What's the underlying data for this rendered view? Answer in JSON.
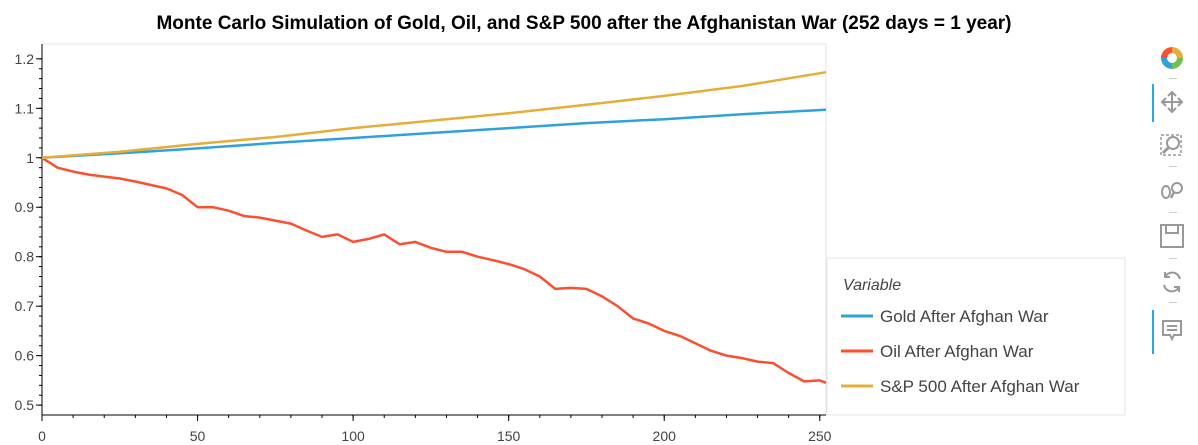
{
  "chart_data": {
    "type": "line",
    "title": "Monte Carlo Simulation of Gold, Oil, and S&P 500 after the Afghanistan War (252 days = 1 year)",
    "xlabel": "",
    "ylabel": "",
    "xlim": [
      0,
      252
    ],
    "ylim": [
      0.48,
      1.23
    ],
    "xticks": [
      0,
      50,
      100,
      150,
      200,
      250
    ],
    "yticks": [
      0.5,
      0.6,
      0.7,
      0.8,
      0.9,
      1,
      1.1,
      1.2
    ],
    "xtick_labels": [
      "0",
      "50",
      "100",
      "150",
      "200",
      "250"
    ],
    "ytick_labels": [
      "0.5",
      "0.6",
      "0.7",
      "0.8",
      "0.9",
      "1",
      "1.1",
      "1.2"
    ],
    "grid": false,
    "legend": {
      "title": "Variable",
      "position": "right"
    },
    "series": [
      {
        "name": "Gold After Afghan War",
        "color": "#30a2da",
        "x": [
          0,
          25,
          50,
          75,
          100,
          125,
          150,
          175,
          200,
          225,
          252
        ],
        "values": [
          1.0,
          1.009,
          1.019,
          1.03,
          1.04,
          1.05,
          1.06,
          1.07,
          1.078,
          1.088,
          1.097
        ]
      },
      {
        "name": "Oil After Afghan War",
        "color": "#fc4f30",
        "x": [
          0,
          5,
          10,
          15,
          20,
          25,
          30,
          35,
          40,
          45,
          50,
          55,
          60,
          65,
          70,
          75,
          80,
          85,
          90,
          95,
          100,
          105,
          110,
          115,
          120,
          125,
          130,
          135,
          140,
          145,
          150,
          155,
          160,
          165,
          170,
          175,
          180,
          185,
          190,
          195,
          200,
          205,
          210,
          215,
          220,
          225,
          230,
          235,
          240,
          245,
          250,
          252
        ],
        "values": [
          1.0,
          0.98,
          0.972,
          0.966,
          0.962,
          0.958,
          0.952,
          0.945,
          0.938,
          0.925,
          0.9,
          0.9,
          0.893,
          0.882,
          0.879,
          0.873,
          0.867,
          0.853,
          0.84,
          0.845,
          0.83,
          0.836,
          0.845,
          0.825,
          0.83,
          0.818,
          0.81,
          0.81,
          0.8,
          0.793,
          0.785,
          0.775,
          0.76,
          0.735,
          0.737,
          0.735,
          0.72,
          0.7,
          0.675,
          0.665,
          0.65,
          0.64,
          0.625,
          0.61,
          0.6,
          0.595,
          0.588,
          0.585,
          0.565,
          0.548,
          0.55,
          0.545
        ]
      },
      {
        "name": "S&P 500 After Afghan War",
        "color": "#e5ae38",
        "x": [
          0,
          25,
          50,
          75,
          100,
          125,
          150,
          175,
          200,
          225,
          252
        ],
        "values": [
          1.0,
          1.012,
          1.028,
          1.042,
          1.06,
          1.075,
          1.09,
          1.107,
          1.125,
          1.145,
          1.173
        ]
      }
    ]
  },
  "toolbar": {
    "items": [
      {
        "name": "bokeh-logo-icon"
      },
      {
        "name": "pan-icon"
      },
      {
        "name": "box-zoom-icon"
      },
      {
        "name": "wheel-zoom-icon"
      },
      {
        "name": "save-icon"
      },
      {
        "name": "reset-icon"
      },
      {
        "name": "hover-icon"
      }
    ],
    "active_color": "#26aae1",
    "icon_color": "#999999"
  }
}
